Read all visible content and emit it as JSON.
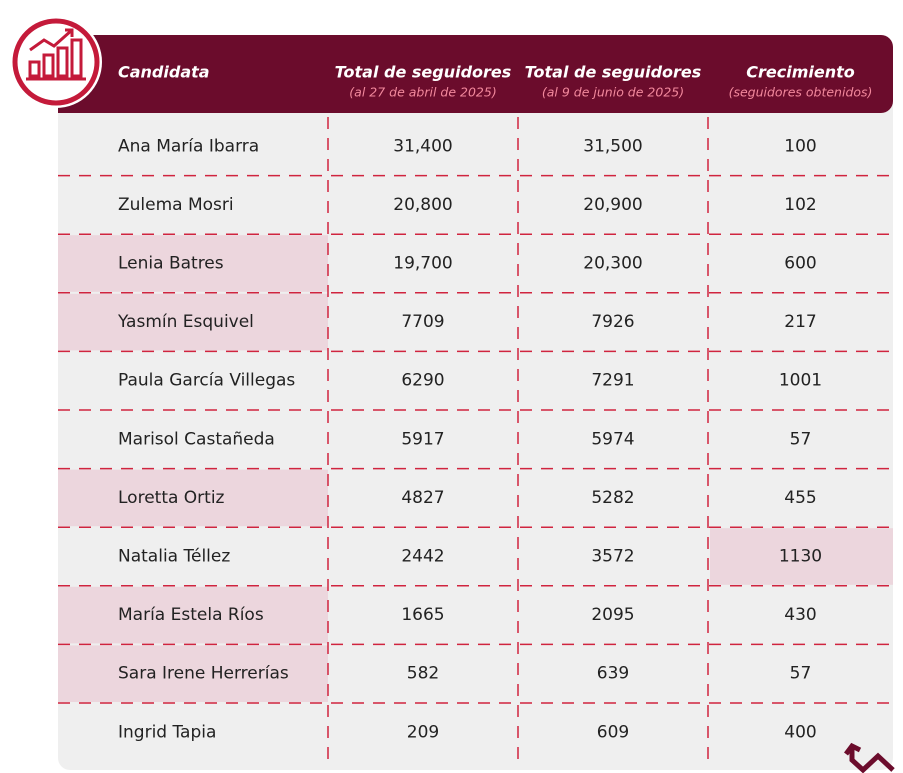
{
  "table": {
    "headers": [
      {
        "title": "Candidata"
      },
      {
        "title": "Total de seguidores",
        "subtitle": "(al 27 de abril de 2025)"
      },
      {
        "title": "Total de seguidores",
        "subtitle": "(al 9 de junio de 2025)"
      },
      {
        "title": "Crecimiento",
        "subtitle": "(seguidores obtenidos)"
      }
    ],
    "rows": [
      [
        "Ana María Ibarra",
        "31,400",
        "31,500",
        "100"
      ],
      [
        "Zulema Mosri",
        "20,800",
        "20,900",
        "102"
      ],
      [
        "Lenia Batres",
        "19,700",
        "20,300",
        "600"
      ],
      [
        "Yasmín Esquivel",
        "7709",
        "7926",
        "217"
      ],
      [
        "Paula García Villegas",
        "6290",
        "7291",
        "1001"
      ],
      [
        "Marisol Castañeda",
        "5917",
        "5974",
        "57"
      ],
      [
        "Loretta Ortiz",
        "4827",
        "5282",
        "455"
      ],
      [
        "Natalia Téllez",
        "2442",
        "3572",
        "1130"
      ],
      [
        "María Estela Ríos",
        "1665",
        "2095",
        "430"
      ],
      [
        "Sara Irene Herrerías",
        "582",
        "639",
        "57"
      ],
      [
        "Ingrid Tapia",
        "209",
        "609",
        "400"
      ]
    ]
  }
}
